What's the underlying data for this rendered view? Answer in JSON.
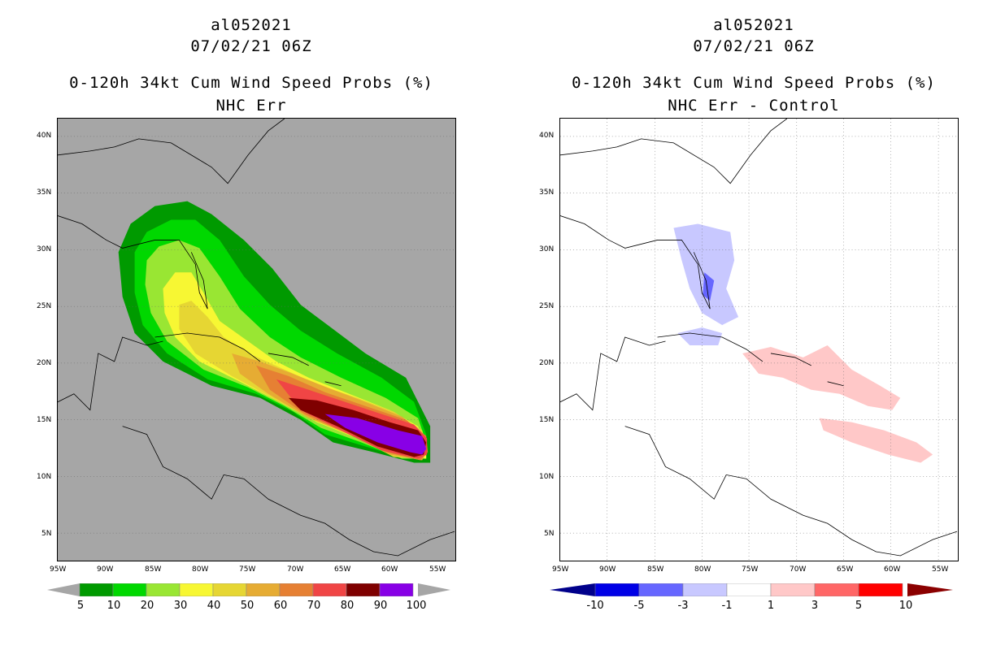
{
  "left": {
    "line1": "al052021",
    "line2": "07/02/21 06Z",
    "line3": "0-120h 34kt Cum Wind Speed Probs (%)",
    "line4": "NHC Err",
    "legend": [
      "5",
      "10",
      "20",
      "30",
      "40",
      "50",
      "60",
      "70",
      "80",
      "90",
      "100"
    ],
    "colors": [
      "#009a00",
      "#00d800",
      "#99e633",
      "#f7f733",
      "#e6d633",
      "#e6ac33",
      "#e68033",
      "#f04545",
      "#7f0000",
      "#8800e6"
    ],
    "background": "#a6a6a6"
  },
  "right": {
    "line1": "al052021",
    "line2": "07/02/21 06Z",
    "line3": "0-120h 34kt Cum Wind Speed Probs (%)",
    "line4": "NHC Err - Control",
    "legend": [
      "-10",
      "-5",
      "-3",
      "-1",
      "1",
      "3",
      "5",
      "10"
    ],
    "colors": [
      "#0000e6",
      "#6666ff",
      "#c8c8ff",
      "#ffffff",
      "#ffc8c8",
      "#ff6666",
      "#ff0000"
    ],
    "end_low": "#00008b",
    "end_high": "#8b0000"
  },
  "axes": {
    "lat": [
      "40N",
      "35N",
      "30N",
      "25N",
      "20N",
      "15N",
      "10N",
      "5N"
    ],
    "lon": [
      "95W",
      "90W",
      "85W",
      "80W",
      "75W",
      "70W",
      "65W",
      "60W",
      "55W"
    ]
  }
}
